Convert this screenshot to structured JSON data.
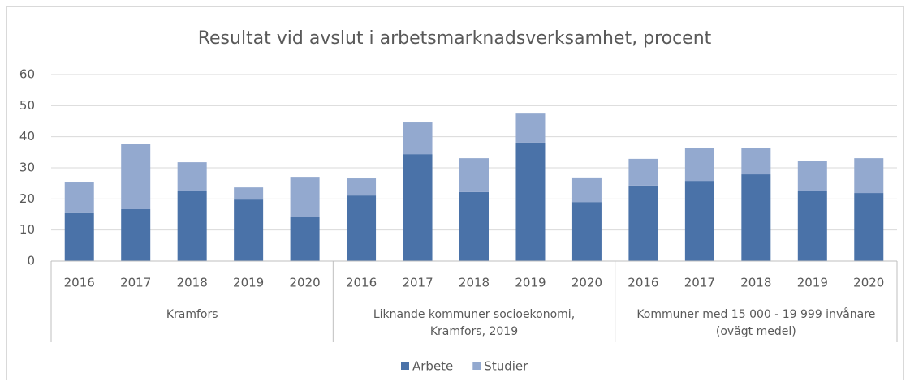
{
  "chart_data": {
    "type": "stacked_bar",
    "title": "Resultat vid avslut i arbetsmarknadsverksamhet,  procent",
    "groups": [
      {
        "label": [
          "Kramfors"
        ],
        "categories": [
          "2016",
          "2017",
          "2018",
          "2019",
          "2020"
        ]
      },
      {
        "label": [
          "Liknande kommuner socioekonomi,",
          "Kramfors, 2019"
        ],
        "categories": [
          "2016",
          "2017",
          "2018",
          "2019",
          "2020"
        ]
      },
      {
        "label": [
          "Kommuner med 15 000 - 19 999 invånare",
          "(ovägt medel)"
        ],
        "categories": [
          "2016",
          "2017",
          "2018",
          "2019",
          "2020"
        ]
      }
    ],
    "series": [
      {
        "name": "Arbete",
        "color": "#4a72a8",
        "values": [
          15.4,
          16.7,
          22.7,
          19.8,
          14.3,
          21.1,
          34.4,
          22.2,
          38.1,
          19.0,
          24.3,
          25.8,
          27.9,
          22.7,
          21.9
        ]
      },
      {
        "name": "Studier",
        "color": "#93a9cf",
        "values": [
          9.9,
          20.9,
          9.1,
          3.9,
          12.8,
          5.5,
          10.2,
          10.9,
          9.6,
          7.9,
          8.6,
          10.7,
          8.6,
          9.6,
          11.2
        ]
      }
    ],
    "ylim": [
      0,
      60
    ],
    "yticks": [
      0,
      10,
      20,
      30,
      40,
      50,
      60
    ],
    "grid": true,
    "legend": "bottom"
  }
}
